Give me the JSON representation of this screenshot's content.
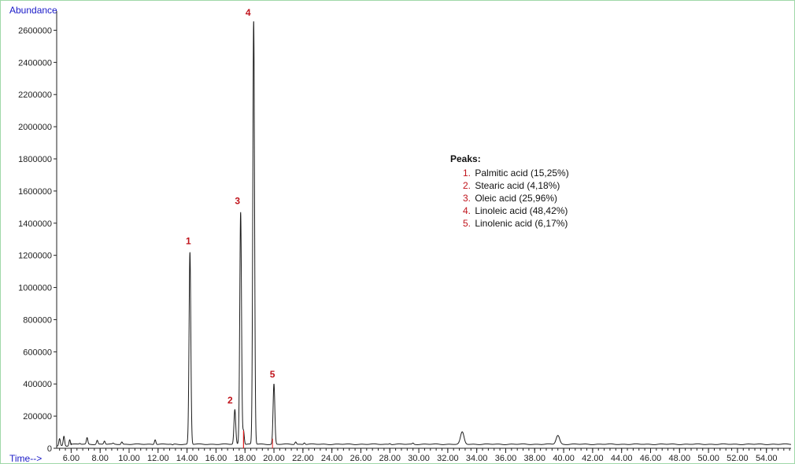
{
  "chart_data": {
    "type": "line",
    "title": "",
    "ylabel": "Abundance",
    "xlabel": "Time-->",
    "xlim": [
      5.0,
      55.7
    ],
    "ylim": [
      0,
      2700000
    ],
    "yticks": [
      0,
      200000,
      400000,
      600000,
      800000,
      1000000,
      1200000,
      1400000,
      1600000,
      1800000,
      2000000,
      2200000,
      2400000,
      2600000
    ],
    "xticks": [
      "6.00",
      "8.00",
      "10.00",
      "12.00",
      "14.00",
      "16.00",
      "18.00",
      "20.00",
      "22.00",
      "24.00",
      "26.00",
      "28.00",
      "30.00",
      "32.00",
      "34.00",
      "36.00",
      "38.00",
      "40.00",
      "42.00",
      "44.00",
      "46.00",
      "48.00",
      "50.00",
      "52.00",
      "54.00"
    ],
    "peaks": [
      {
        "label": "1",
        "x": 14.2,
        "y": 1220000
      },
      {
        "label": "2",
        "x": 17.3,
        "y": 240000
      },
      {
        "label": "3",
        "x": 17.7,
        "y": 1470000
      },
      {
        "label": "4",
        "x": 18.6,
        "y": 2660000
      },
      {
        "label": "5",
        "x": 20.0,
        "y": 400000
      }
    ],
    "minor_peaks": [
      {
        "x": 5.2,
        "y": 70000
      },
      {
        "x": 5.5,
        "y": 85000
      },
      {
        "x": 5.9,
        "y": 65000
      },
      {
        "x": 6.6,
        "y": 30000
      },
      {
        "x": 7.1,
        "y": 65000
      },
      {
        "x": 7.8,
        "y": 50000
      },
      {
        "x": 8.3,
        "y": 45000
      },
      {
        "x": 8.9,
        "y": 30000
      },
      {
        "x": 9.5,
        "y": 40000
      },
      {
        "x": 10.1,
        "y": 25000
      },
      {
        "x": 11.8,
        "y": 55000
      },
      {
        "x": 13.0,
        "y": 20000
      },
      {
        "x": 17.9,
        "y": 110000
      },
      {
        "x": 21.5,
        "y": 40000
      },
      {
        "x": 22.1,
        "y": 35000
      },
      {
        "x": 28.0,
        "y": 30000
      },
      {
        "x": 29.6,
        "y": 32000
      },
      {
        "x": 33.0,
        "y": 100000
      },
      {
        "x": 39.6,
        "y": 80000
      }
    ],
    "baseline": 25000,
    "legend": {
      "title": "Peaks:",
      "items": [
        {
          "num": "1.",
          "text": "Palmitic acid (15,25%)"
        },
        {
          "num": "2.",
          "text": "Stearic acid (4,18%)"
        },
        {
          "num": "3.",
          "text": "Oleic acid (25,96%)"
        },
        {
          "num": "4.",
          "text": "Linoleic acid (48,42%)"
        },
        {
          "num": "5.",
          "text": "Linolenic acid (6,17%)"
        }
      ]
    },
    "grid": false,
    "legend_position": "right-center",
    "colors": {
      "trace": "#1c1c1c",
      "peak_label": "#c0141c",
      "axis_title": "#1a1ac8",
      "highlight": "#e02020"
    }
  }
}
